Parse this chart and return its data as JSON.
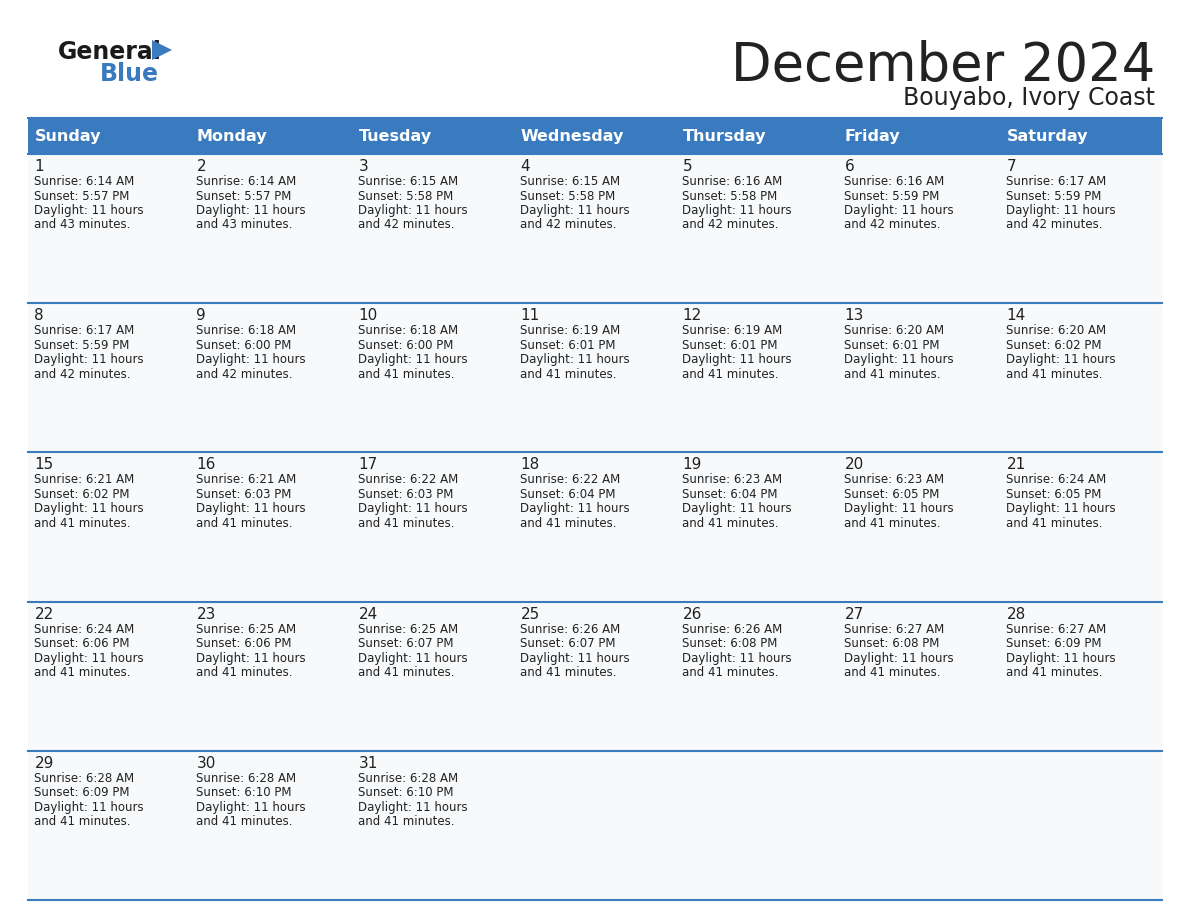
{
  "title": "December 2024",
  "subtitle": "Bouyabo, Ivory Coast",
  "header_bg": "#3a7bbf",
  "header_text_color": "#ffffff",
  "border_color": "#3a7bbf",
  "text_color": "#222222",
  "cell_bg": "#ffffff",
  "alt_cell_bg": "#f2f5f8",
  "days_of_week": [
    "Sunday",
    "Monday",
    "Tuesday",
    "Wednesday",
    "Thursday",
    "Friday",
    "Saturday"
  ],
  "calendar": [
    [
      {
        "day": "1",
        "sunrise": "6:14 AM",
        "sunset": "5:57 PM",
        "daylight_h": "11 hours",
        "daylight_m": "and 43 minutes."
      },
      {
        "day": "2",
        "sunrise": "6:14 AM",
        "sunset": "5:57 PM",
        "daylight_h": "11 hours",
        "daylight_m": "and 43 minutes."
      },
      {
        "day": "3",
        "sunrise": "6:15 AM",
        "sunset": "5:58 PM",
        "daylight_h": "11 hours",
        "daylight_m": "and 42 minutes."
      },
      {
        "day": "4",
        "sunrise": "6:15 AM",
        "sunset": "5:58 PM",
        "daylight_h": "11 hours",
        "daylight_m": "and 42 minutes."
      },
      {
        "day": "5",
        "sunrise": "6:16 AM",
        "sunset": "5:58 PM",
        "daylight_h": "11 hours",
        "daylight_m": "and 42 minutes."
      },
      {
        "day": "6",
        "sunrise": "6:16 AM",
        "sunset": "5:59 PM",
        "daylight_h": "11 hours",
        "daylight_m": "and 42 minutes."
      },
      {
        "day": "7",
        "sunrise": "6:17 AM",
        "sunset": "5:59 PM",
        "daylight_h": "11 hours",
        "daylight_m": "and 42 minutes."
      }
    ],
    [
      {
        "day": "8",
        "sunrise": "6:17 AM",
        "sunset": "5:59 PM",
        "daylight_h": "11 hours",
        "daylight_m": "and 42 minutes."
      },
      {
        "day": "9",
        "sunrise": "6:18 AM",
        "sunset": "6:00 PM",
        "daylight_h": "11 hours",
        "daylight_m": "and 42 minutes."
      },
      {
        "day": "10",
        "sunrise": "6:18 AM",
        "sunset": "6:00 PM",
        "daylight_h": "11 hours",
        "daylight_m": "and 41 minutes."
      },
      {
        "day": "11",
        "sunrise": "6:19 AM",
        "sunset": "6:01 PM",
        "daylight_h": "11 hours",
        "daylight_m": "and 41 minutes."
      },
      {
        "day": "12",
        "sunrise": "6:19 AM",
        "sunset": "6:01 PM",
        "daylight_h": "11 hours",
        "daylight_m": "and 41 minutes."
      },
      {
        "day": "13",
        "sunrise": "6:20 AM",
        "sunset": "6:01 PM",
        "daylight_h": "11 hours",
        "daylight_m": "and 41 minutes."
      },
      {
        "day": "14",
        "sunrise": "6:20 AM",
        "sunset": "6:02 PM",
        "daylight_h": "11 hours",
        "daylight_m": "and 41 minutes."
      }
    ],
    [
      {
        "day": "15",
        "sunrise": "6:21 AM",
        "sunset": "6:02 PM",
        "daylight_h": "11 hours",
        "daylight_m": "and 41 minutes."
      },
      {
        "day": "16",
        "sunrise": "6:21 AM",
        "sunset": "6:03 PM",
        "daylight_h": "11 hours",
        "daylight_m": "and 41 minutes."
      },
      {
        "day": "17",
        "sunrise": "6:22 AM",
        "sunset": "6:03 PM",
        "daylight_h": "11 hours",
        "daylight_m": "and 41 minutes."
      },
      {
        "day": "18",
        "sunrise": "6:22 AM",
        "sunset": "6:04 PM",
        "daylight_h": "11 hours",
        "daylight_m": "and 41 minutes."
      },
      {
        "day": "19",
        "sunrise": "6:23 AM",
        "sunset": "6:04 PM",
        "daylight_h": "11 hours",
        "daylight_m": "and 41 minutes."
      },
      {
        "day": "20",
        "sunrise": "6:23 AM",
        "sunset": "6:05 PM",
        "daylight_h": "11 hours",
        "daylight_m": "and 41 minutes."
      },
      {
        "day": "21",
        "sunrise": "6:24 AM",
        "sunset": "6:05 PM",
        "daylight_h": "11 hours",
        "daylight_m": "and 41 minutes."
      }
    ],
    [
      {
        "day": "22",
        "sunrise": "6:24 AM",
        "sunset": "6:06 PM",
        "daylight_h": "11 hours",
        "daylight_m": "and 41 minutes."
      },
      {
        "day": "23",
        "sunrise": "6:25 AM",
        "sunset": "6:06 PM",
        "daylight_h": "11 hours",
        "daylight_m": "and 41 minutes."
      },
      {
        "day": "24",
        "sunrise": "6:25 AM",
        "sunset": "6:07 PM",
        "daylight_h": "11 hours",
        "daylight_m": "and 41 minutes."
      },
      {
        "day": "25",
        "sunrise": "6:26 AM",
        "sunset": "6:07 PM",
        "daylight_h": "11 hours",
        "daylight_m": "and 41 minutes."
      },
      {
        "day": "26",
        "sunrise": "6:26 AM",
        "sunset": "6:08 PM",
        "daylight_h": "11 hours",
        "daylight_m": "and 41 minutes."
      },
      {
        "day": "27",
        "sunrise": "6:27 AM",
        "sunset": "6:08 PM",
        "daylight_h": "11 hours",
        "daylight_m": "and 41 minutes."
      },
      {
        "day": "28",
        "sunrise": "6:27 AM",
        "sunset": "6:09 PM",
        "daylight_h": "11 hours",
        "daylight_m": "and 41 minutes."
      }
    ],
    [
      {
        "day": "29",
        "sunrise": "6:28 AM",
        "sunset": "6:09 PM",
        "daylight_h": "11 hours",
        "daylight_m": "and 41 minutes."
      },
      {
        "day": "30",
        "sunrise": "6:28 AM",
        "sunset": "6:10 PM",
        "daylight_h": "11 hours",
        "daylight_m": "and 41 minutes."
      },
      {
        "day": "31",
        "sunrise": "6:28 AM",
        "sunset": "6:10 PM",
        "daylight_h": "11 hours",
        "daylight_m": "and 41 minutes."
      },
      null,
      null,
      null,
      null
    ]
  ],
  "logo_general_color": "#1a1a1a",
  "logo_blue_color": "#3a7bbf",
  "logo_triangle_color": "#3a7bbf",
  "title_fontsize": 38,
  "subtitle_fontsize": 17,
  "header_fontsize": 11.5,
  "day_num_fontsize": 11,
  "cell_text_fontsize": 8.5
}
